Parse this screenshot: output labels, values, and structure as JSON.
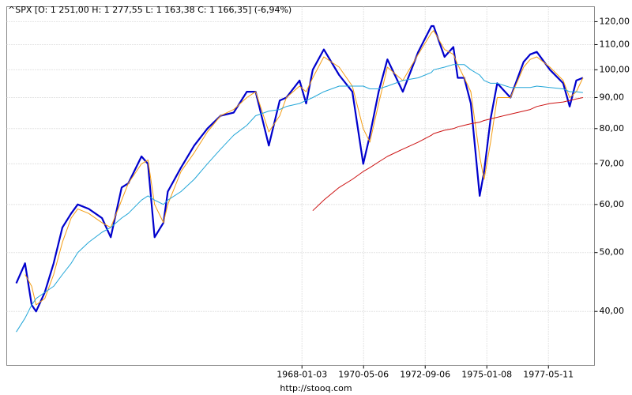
{
  "chart_data": {
    "type": "line",
    "title": "^SPX [O: 1 251,00  H: 1 277,55  L: 1 163,38  C: 1 166,35] (-6,94%)",
    "footer": "http://stooq.com",
    "log_scale": true,
    "grid": true,
    "x": [
      "1957-03-01",
      "1957-07-01",
      "1957-10-01",
      "1957-12-01",
      "1958-04-01",
      "1958-08-01",
      "1958-12-01",
      "1959-04-01",
      "1959-07-01",
      "1959-12-01",
      "1960-06-01",
      "1960-10-01",
      "1961-03-01",
      "1961-06-01",
      "1961-12-01",
      "1962-03-01",
      "1962-06-01",
      "1962-10-01",
      "1962-12-01",
      "1963-06-01",
      "1963-12-01",
      "1964-06-01",
      "1964-12-01",
      "1965-06-01",
      "1965-12-01",
      "1966-04-01",
      "1966-10-01",
      "1967-03-01",
      "1967-06-01",
      "1967-12-01",
      "1968-03-01",
      "1968-06-01",
      "1968-11-01",
      "1969-06-01",
      "1969-12-01",
      "1970-05-01",
      "1970-08-01",
      "1970-12-01",
      "1971-04-01",
      "1971-11-01",
      "1972-06-01",
      "1972-12-01",
      "1973-01-01",
      "1973-06-01",
      "1973-10-01",
      "1973-12-01",
      "1974-03-01",
      "1974-06-01",
      "1974-10-01",
      "1974-12-01",
      "1975-03-01",
      "1975-06-01",
      "1975-12-01",
      "1976-06-01",
      "1976-09-01",
      "1976-12-01",
      "1977-06-01",
      "1977-12-01",
      "1978-03-01",
      "1978-06-01",
      "1978-09-01"
    ],
    "xlim": [
      "1956-10-20",
      "1979-02-08"
    ],
    "xticks": [
      "1968-01-03",
      "1970-05-06",
      "1972-09-06",
      "1975-01-08",
      "1977-05-11"
    ],
    "ylim": [
      32.6,
      127
    ],
    "yticks": [
      {
        "value": 40,
        "label": "40,00"
      },
      {
        "value": 50,
        "label": "50,00"
      },
      {
        "value": 60,
        "label": "60,00"
      },
      {
        "value": 70,
        "label": "70,00"
      },
      {
        "value": 80,
        "label": "80,00"
      },
      {
        "value": 90,
        "label": "90,00"
      },
      {
        "value": 100,
        "label": "100,00"
      },
      {
        "value": 110,
        "label": "110,00"
      },
      {
        "value": 120,
        "label": "120,00"
      }
    ],
    "series": [
      {
        "color": "#0000cc",
        "values": [
          44.5,
          48,
          41,
          40,
          43,
          48,
          55,
          58,
          60,
          59,
          57,
          53,
          64,
          65,
          72,
          70,
          53,
          56,
          63,
          69,
          75,
          80,
          84,
          85,
          92,
          92,
          75,
          89,
          90,
          96,
          88,
          100,
          108,
          98,
          92,
          70,
          78,
          92,
          104,
          92,
          107,
          118,
          118,
          105,
          109,
          97,
          97,
          88,
          62,
          68,
          83,
          95,
          90,
          103,
          106,
          107,
          100,
          95,
          87,
          96,
          97
        ]
      },
      {
        "color": "#f39c12",
        "values": [
          null,
          46,
          44,
          41,
          42,
          46,
          52,
          57,
          59,
          58,
          56,
          55,
          61,
          65,
          70,
          71,
          60,
          56,
          60,
          68,
          73,
          79,
          84,
          86,
          90,
          92,
          79,
          84,
          90,
          94,
          92,
          97,
          105,
          101,
          94,
          80,
          76,
          88,
          101,
          96,
          106,
          115,
          116,
          108,
          106,
          102,
          97,
          92,
          72,
          66,
          76,
          90,
          90,
          101,
          104,
          105,
          101,
          96,
          90,
          92,
          97
        ]
      },
      {
        "color": "#22a6d8",
        "values": [
          37,
          39,
          41,
          42,
          43,
          44,
          46,
          48,
          50,
          52,
          54,
          55,
          57,
          58,
          61,
          62,
          61,
          60,
          61,
          63,
          66,
          70,
          74,
          78,
          81,
          84,
          85.5,
          86,
          87,
          88,
          89,
          90,
          92,
          94,
          94,
          94,
          93,
          93,
          94,
          96,
          97,
          99,
          100,
          101,
          102,
          102,
          102,
          100,
          98,
          96,
          95,
          95,
          93.5,
          93.5,
          93.5,
          94,
          93.5,
          93,
          92,
          92,
          91.7
        ]
      },
      {
        "color": "#cc1111",
        "values": [
          null,
          null,
          null,
          null,
          null,
          null,
          null,
          null,
          null,
          null,
          null,
          null,
          null,
          null,
          null,
          null,
          null,
          null,
          null,
          null,
          null,
          null,
          null,
          null,
          null,
          null,
          null,
          null,
          null,
          null,
          null,
          58.6,
          61,
          64,
          66,
          68,
          69,
          70.5,
          72,
          74,
          76,
          78,
          78.5,
          79.5,
          80,
          80.5,
          81,
          81.5,
          82,
          82.5,
          83,
          83.5,
          84.5,
          85.5,
          86,
          87,
          88,
          88.5,
          89,
          89.5,
          90
        ]
      }
    ]
  }
}
